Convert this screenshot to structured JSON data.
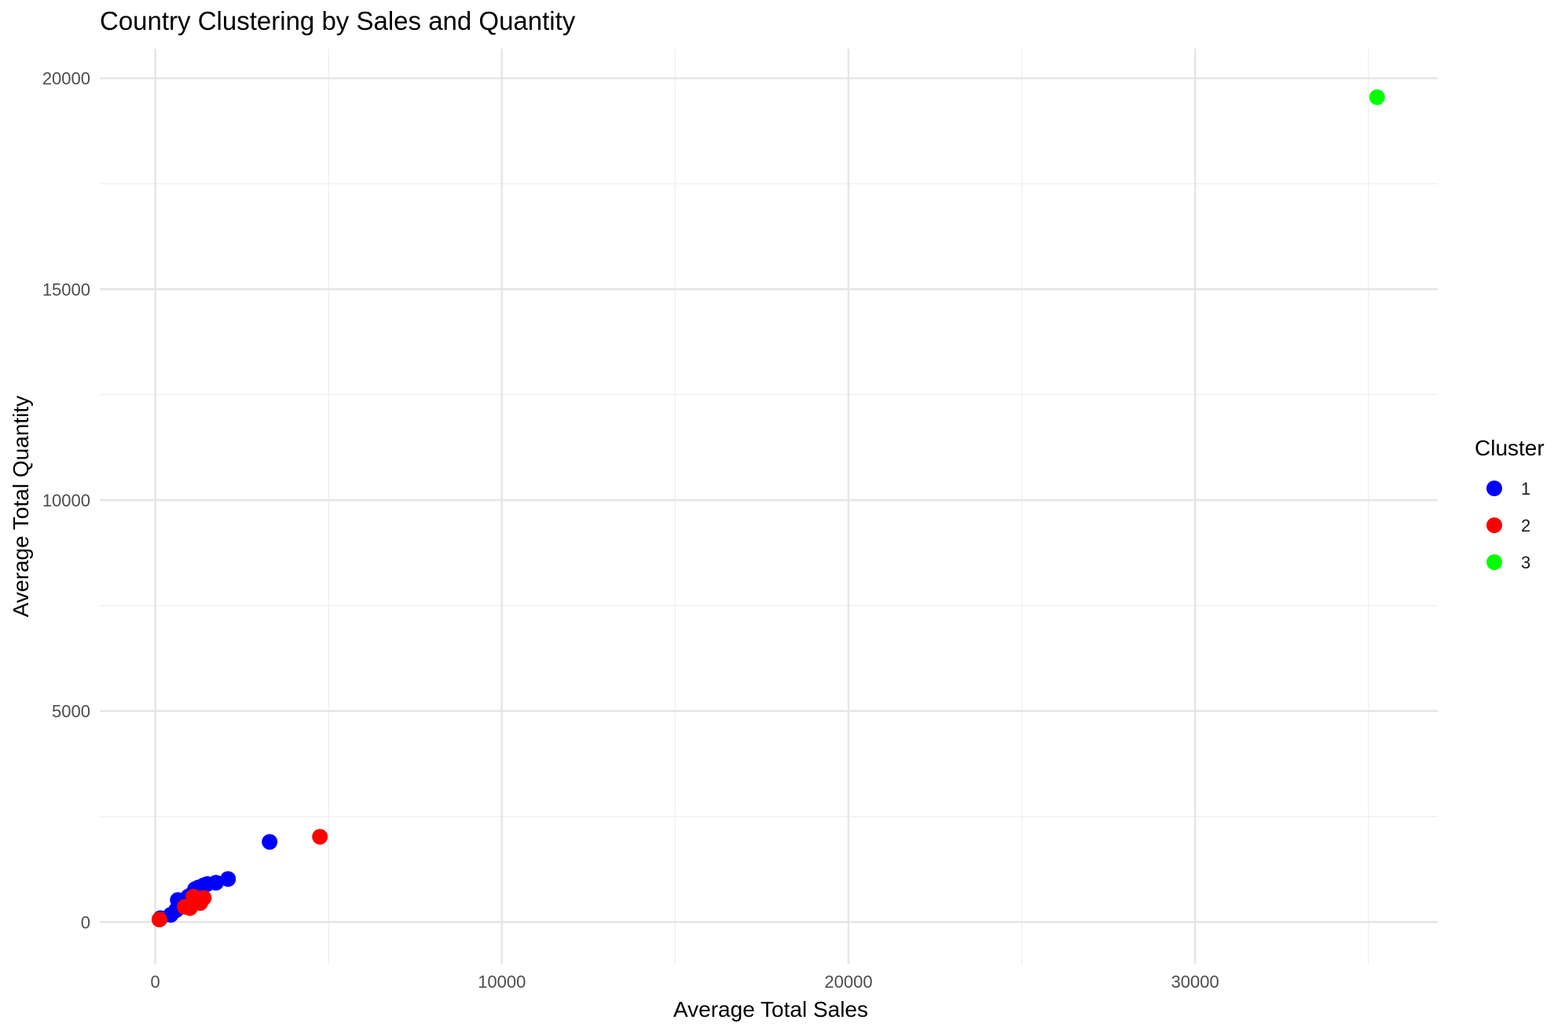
{
  "chart_data": {
    "type": "scatter",
    "title": "Country Clustering by Sales and Quantity",
    "xlabel": "Average Total Sales",
    "ylabel": "Average Total Quantity",
    "xlim": [
      -1600,
      37000
    ],
    "ylim": [
      -1000,
      20700
    ],
    "xticks": [
      0,
      10000,
      20000,
      30000
    ],
    "yticks": [
      0,
      5000,
      10000,
      15000,
      20000
    ],
    "grid": true,
    "legend": {
      "title": "Cluster",
      "position": "right"
    },
    "series": [
      {
        "name": "1",
        "color": "#0000ff",
        "points": [
          [
            150,
            90
          ],
          [
            450,
            170
          ],
          [
            600,
            280
          ],
          [
            700,
            400
          ],
          [
            650,
            520
          ],
          [
            900,
            480
          ],
          [
            950,
            600
          ],
          [
            1050,
            650
          ],
          [
            1150,
            780
          ],
          [
            1250,
            820
          ],
          [
            1400,
            870
          ],
          [
            1500,
            900
          ],
          [
            1750,
            930
          ],
          [
            2100,
            1020
          ],
          [
            3300,
            1900
          ]
        ]
      },
      {
        "name": "2",
        "color": "#ff0000",
        "points": [
          [
            120,
            60
          ],
          [
            850,
            360
          ],
          [
            1000,
            330
          ],
          [
            1100,
            600
          ],
          [
            1300,
            450
          ],
          [
            1400,
            570
          ],
          [
            4750,
            2020
          ]
        ]
      },
      {
        "name": "3",
        "color": "#00ff00",
        "points": [
          [
            35250,
            19550
          ]
        ]
      }
    ]
  }
}
